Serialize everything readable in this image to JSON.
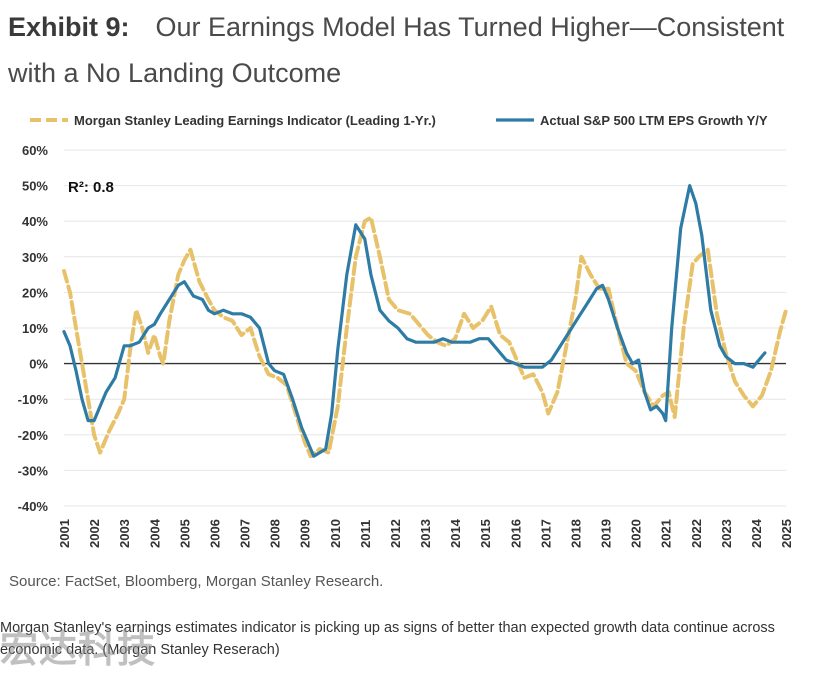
{
  "header": {
    "exhibit_label": "Exhibit 9:",
    "title": "Our Earnings Model Has Turned Higher—Consistent with a No Landing Outcome"
  },
  "source": "Source: FactSet, Bloomberg, Morgan Stanley Research.",
  "caption": "Morgan Stanley's earnings estimates indicator is picking up as signs of better than expected growth data continue across economic data. (Morgan Stanley Reserach)",
  "watermark": "宏达科技",
  "colors": {
    "leading": "#E8C26A",
    "actual": "#2E7BA6",
    "zero_line": "#333333",
    "grid": "#e6e6e6"
  },
  "chart_data": {
    "type": "line",
    "title": "",
    "xlabel": "",
    "ylabel": "",
    "xlim": [
      2001,
      2025
    ],
    "ylim": [
      -40,
      60
    ],
    "y_ticks": [
      -40,
      -30,
      -20,
      -10,
      0,
      10,
      20,
      30,
      40,
      50,
      60
    ],
    "y_tick_labels": [
      "-40%",
      "-30%",
      "-20%",
      "-10%",
      "0%",
      "10%",
      "20%",
      "30%",
      "40%",
      "50%",
      "60%"
    ],
    "x_ticks": [
      2001,
      2002,
      2003,
      2004,
      2005,
      2006,
      2007,
      2008,
      2009,
      2010,
      2011,
      2012,
      2013,
      2014,
      2015,
      2016,
      2017,
      2018,
      2019,
      2020,
      2021,
      2022,
      2023,
      2024,
      2025
    ],
    "x_tick_labels": [
      "2001",
      "2002",
      "2003",
      "2004",
      "2005",
      "2006",
      "2007",
      "2008",
      "2009",
      "2010",
      "2011",
      "2012",
      "2013",
      "2014",
      "2015",
      "2016",
      "2017",
      "2018",
      "2019",
      "2020",
      "2021",
      "2022",
      "2023",
      "2024",
      "2025"
    ],
    "grid": "horizontal",
    "legend_position": "top",
    "annotation": "R²: 0.8",
    "series": [
      {
        "name": "Morgan Stanley Leading Earnings Indicator (Leading 1-Yr.)",
        "style": "dashed",
        "x": [
          2001.0,
          2001.2,
          2001.5,
          2001.8,
          2002.0,
          2002.2,
          2002.5,
          2002.8,
          2003.0,
          2003.2,
          2003.4,
          2003.6,
          2003.8,
          2004.0,
          2004.2,
          2004.3,
          2004.5,
          2004.8,
          2005.0,
          2005.2,
          2005.5,
          2005.8,
          2006.0,
          2006.3,
          2006.6,
          2006.9,
          2007.2,
          2007.5,
          2007.8,
          2008.1,
          2008.4,
          2008.7,
          2009.0,
          2009.2,
          2009.5,
          2009.8,
          2010.1,
          2010.4,
          2010.7,
          2011.0,
          2011.2,
          2011.5,
          2011.8,
          2012.1,
          2012.5,
          2012.8,
          2013.1,
          2013.4,
          2013.7,
          2014.0,
          2014.3,
          2014.6,
          2014.9,
          2015.2,
          2015.5,
          2015.8,
          2016.0,
          2016.3,
          2016.6,
          2016.9,
          2017.1,
          2017.4,
          2017.7,
          2018.0,
          2018.2,
          2018.5,
          2018.8,
          2019.1,
          2019.4,
          2019.7,
          2020.0,
          2020.3,
          2020.6,
          2020.9,
          2021.1,
          2021.3,
          2021.6,
          2021.9,
          2022.1,
          2022.4,
          2022.7,
          2023.0,
          2023.3,
          2023.6,
          2023.9,
          2024.2,
          2024.5,
          2024.8,
          2025.0
        ],
        "values": [
          26,
          20,
          5,
          -10,
          -20,
          -25,
          -19,
          -14,
          -10,
          4,
          15,
          10,
          3,
          8,
          2,
          0,
          12,
          25,
          29,
          32,
          23,
          18,
          15,
          13,
          12,
          8,
          10,
          2,
          -3,
          -4,
          -6,
          -14,
          -22,
          -26,
          -24,
          -25,
          -12,
          10,
          30,
          40,
          41,
          30,
          18,
          15,
          14,
          11,
          8,
          6,
          5,
          7,
          14,
          10,
          12,
          16,
          8,
          6,
          2,
          -4,
          -3,
          -8,
          -14,
          -8,
          5,
          18,
          30,
          25,
          21,
          21,
          10,
          0,
          -2,
          -8,
          -12,
          -9,
          -8,
          -15,
          10,
          28,
          30,
          32,
          14,
          3,
          -5,
          -9,
          -12,
          -9,
          -2,
          9,
          15
        ]
      },
      {
        "name": "Actual S&P 500 LTM EPS Growth Y/Y",
        "style": "solid",
        "x": [
          2001.0,
          2001.2,
          2001.4,
          2001.6,
          2001.8,
          2002.0,
          2002.2,
          2002.4,
          2002.7,
          2003.0,
          2003.2,
          2003.5,
          2003.8,
          2004.0,
          2004.2,
          2004.5,
          2004.8,
          2005.0,
          2005.3,
          2005.6,
          2005.8,
          2006.0,
          2006.3,
          2006.6,
          2006.9,
          2007.2,
          2007.5,
          2007.8,
          2008.0,
          2008.3,
          2008.6,
          2008.9,
          2009.1,
          2009.3,
          2009.5,
          2009.7,
          2009.9,
          2010.1,
          2010.4,
          2010.7,
          2011.0,
          2011.2,
          2011.5,
          2011.8,
          2012.1,
          2012.4,
          2012.7,
          2013.0,
          2013.3,
          2013.6,
          2013.9,
          2014.2,
          2014.5,
          2014.8,
          2015.1,
          2015.4,
          2015.7,
          2016.0,
          2016.3,
          2016.6,
          2016.9,
          2017.2,
          2017.5,
          2017.8,
          2018.1,
          2018.4,
          2018.7,
          2018.9,
          2019.1,
          2019.4,
          2019.7,
          2019.9,
          2020.1,
          2020.3,
          2020.5,
          2020.7,
          2020.9,
          2021.0,
          2021.2,
          2021.5,
          2021.8,
          2022.0,
          2022.2,
          2022.5,
          2022.8,
          2023.0,
          2023.3,
          2023.6,
          2023.9,
          2024.1,
          2024.3
        ],
        "values": [
          9,
          5,
          -2,
          -10,
          -16,
          -16,
          -12,
          -8,
          -4,
          5,
          5,
          6,
          10,
          11,
          14,
          18,
          22,
          23,
          19,
          18,
          15,
          14,
          15,
          14,
          14,
          13,
          10,
          0,
          -2,
          -3,
          -10,
          -18,
          -22,
          -26,
          -25,
          -24,
          -14,
          4,
          25,
          39,
          35,
          25,
          15,
          12,
          10,
          7,
          6,
          6,
          6,
          7,
          6,
          6,
          6,
          7,
          7,
          4,
          1,
          0,
          -1,
          -1,
          -1,
          1,
          5,
          9,
          13,
          17,
          21,
          22,
          18,
          10,
          3,
          0,
          1,
          -8,
          -13,
          -12,
          -14,
          -16,
          10,
          38,
          50,
          45,
          36,
          15,
          5,
          2,
          0,
          0,
          -1,
          1,
          3
        ]
      }
    ]
  }
}
